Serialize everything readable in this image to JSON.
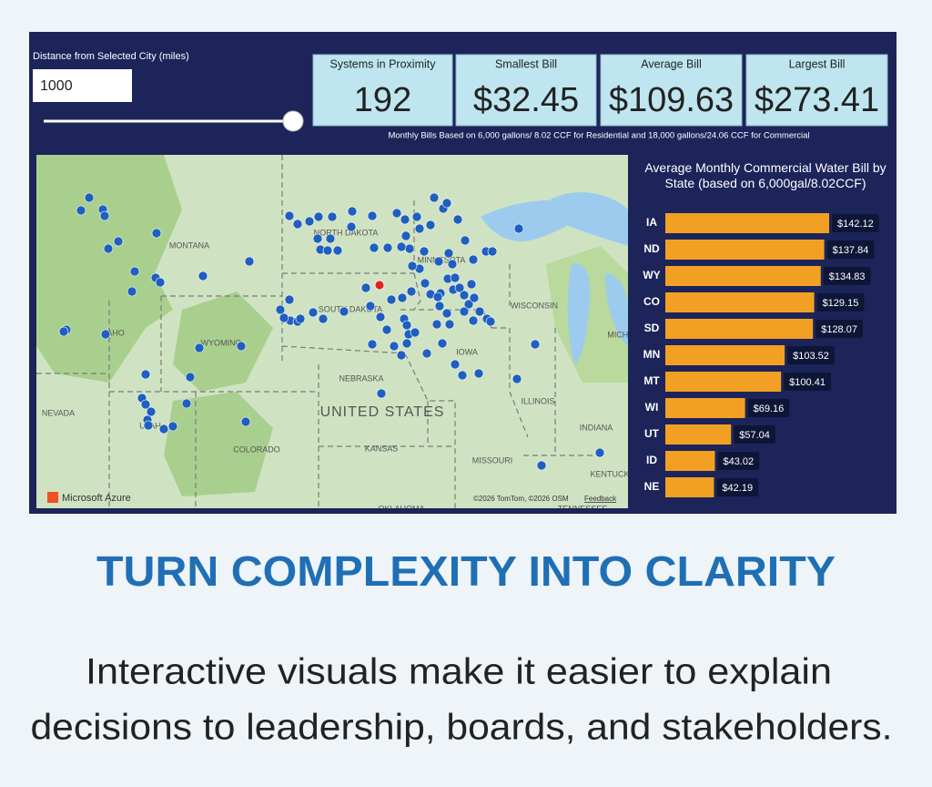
{
  "dashboard": {
    "slider_label": "Distance from Selected City (miles)",
    "distance_input": "1000",
    "kpis": [
      {
        "title": "Systems in Proximity",
        "value": "192"
      },
      {
        "title": "Smallest Bill",
        "value": "$32.45"
      },
      {
        "title": "Average Bill",
        "value": "$109.63"
      },
      {
        "title": "Largest Bill",
        "value": "$273.41"
      }
    ],
    "note": "Monthly Bills Based on 6,000 gallons/ 8.02 CCF for Residential and 18,000 gallons/24.06 CCF for Commercial"
  },
  "map": {
    "labels": [
      "MONTANA",
      "NORTH DAKOTA",
      "MINNESOTA",
      "WISCONSIN",
      "SOUTH DAKOTA",
      "AHO",
      "WYOMING",
      "IOWA",
      "NEBRASKA",
      "ILLINOIS",
      "NEVADA",
      "UNITED STATES",
      "UTAH",
      "INDIANA",
      "COLORADO",
      "KANSAS",
      "MISSOURI",
      "KENTUCK",
      "MICHI",
      "OKLAHOMA",
      "TENNESSEE"
    ],
    "attribution": "©2026 TomTom, ©2026 OSM",
    "feedback": "Feedback",
    "brand": "Microsoft Azure"
  },
  "chart_data": {
    "type": "bar",
    "orientation": "horizontal",
    "title": "Average Monthly Commercial Water Bill by State (based on 6,000gal/8.02CCF)",
    "categories": [
      "IA",
      "ND",
      "WY",
      "CO",
      "SD",
      "MN",
      "MT",
      "WI",
      "UT",
      "ID",
      "NE"
    ],
    "values": [
      142.12,
      137.84,
      134.83,
      129.15,
      128.07,
      103.52,
      100.41,
      69.16,
      57.04,
      43.02,
      42.19
    ],
    "value_labels": [
      "$142.12",
      "$137.84",
      "$134.83",
      "$129.15",
      "$128.07",
      "$103.52",
      "$100.41",
      "$69.16",
      "$57.04",
      "$43.02",
      "$42.19"
    ],
    "color": "#f2a024"
  },
  "headline": "TURN COMPLEXITY INTO CLARITY",
  "body": [
    "Interactive visuals make it easier to explain",
    "decisions to leadership, boards, and stakeholders."
  ]
}
